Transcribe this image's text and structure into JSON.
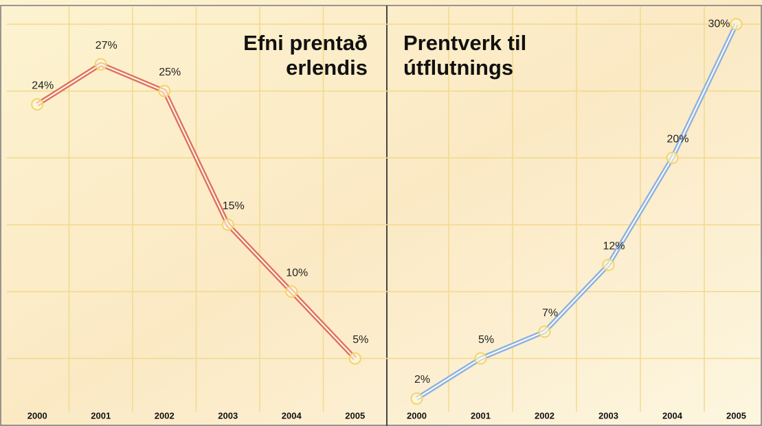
{
  "chart_data": [
    {
      "type": "line",
      "title": [
        "Efni prentað",
        "erlendis"
      ],
      "categories": [
        "2000",
        "2001",
        "2002",
        "2003",
        "2004",
        "2005"
      ],
      "values": [
        24,
        27,
        25,
        15,
        10,
        5
      ],
      "value_labels": [
        "24%",
        "27%",
        "25%",
        "15%",
        "10%",
        "5%"
      ],
      "color": "#e0735c",
      "ylim": [
        0,
        31.5
      ],
      "yticks": [
        5,
        10,
        15,
        20,
        25,
        30
      ],
      "grid": true
    },
    {
      "type": "line",
      "title": [
        "Prentverk til",
        "útflutnings"
      ],
      "categories": [
        "2000",
        "2001",
        "2002",
        "2003",
        "2004",
        "2005"
      ],
      "values": [
        2,
        5,
        7,
        12,
        20,
        30
      ],
      "value_labels": [
        "2%",
        "5%",
        "7%",
        "12%",
        "20%",
        "30%"
      ],
      "color": "#8fb2df",
      "ylim": [
        0,
        31.5
      ],
      "yticks": [
        5,
        10,
        15,
        20,
        25,
        30
      ],
      "grid": true
    }
  ]
}
